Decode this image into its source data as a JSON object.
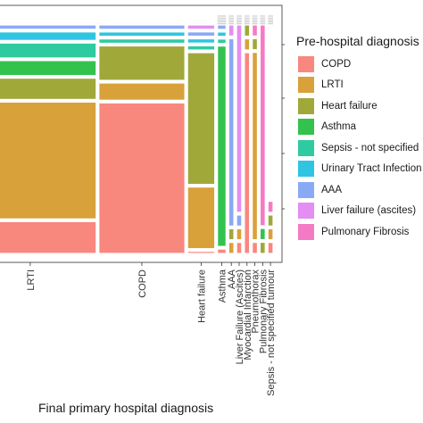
{
  "chart_data": {
    "type": "mosaic",
    "xlabel": "Final primary hospital diagnosis",
    "legend_title": "Pre-hospital diagnosis",
    "legend_position": "right",
    "grid": false,
    "series": [
      {
        "name": "COPD",
        "color": "#f8877e"
      },
      {
        "name": "LRTI",
        "color": "#d9a13a"
      },
      {
        "name": "Heart failure",
        "color": "#a0a83a"
      },
      {
        "name": "Asthma",
        "color": "#33c24e"
      },
      {
        "name": "Sepsis - not specified",
        "color": "#2ecba0"
      },
      {
        "name": "Urinary Tract Infection",
        "color": "#2fc5e2"
      },
      {
        "name": "AAA",
        "color": "#8aa9f5"
      },
      {
        "name": "Liver failure (ascites)",
        "color": "#e48df2"
      },
      {
        "name": "Pulmonary Fibrosis",
        "color": "#f57ac6"
      }
    ],
    "categories": [
      "LRTI",
      "COPD",
      "Heart failure",
      "Asthma",
      "AAA",
      "Liver Failure (Ascites)",
      "Myocardial Infarction",
      "Pneumothorax",
      "Pulmonary Fibrosis",
      "Sepsis - not specified tumour"
    ],
    "column_widths": [
      0.46,
      0.3,
      0.095,
      0.03,
      0.018,
      0.018,
      0.018,
      0.018,
      0.018,
      0.018
    ],
    "columns": [
      {
        "category": "LRTI",
        "segments": [
          [
            "COPD",
            0.15
          ],
          [
            "LRTI",
            0.55
          ],
          [
            "Heart failure",
            0.1
          ],
          [
            "Asthma",
            0.07
          ],
          [
            "Sepsis - not specified",
            0.07
          ],
          [
            "Urinary Tract Infection",
            0.04
          ],
          [
            "AAA",
            0.02
          ]
        ]
      },
      {
        "category": "COPD",
        "segments": [
          [
            "COPD",
            0.7
          ],
          [
            "LRTI",
            0.08
          ],
          [
            "Heart failure",
            0.16
          ],
          [
            "Sepsis - not specified",
            0.02
          ],
          [
            "Urinary Tract Infection",
            0.02
          ],
          [
            "AAA",
            0.02
          ]
        ]
      },
      {
        "category": "Heart failure",
        "segments": [
          [
            "COPD",
            0.01
          ],
          [
            "LRTI",
            0.29
          ],
          [
            "Heart failure",
            0.62
          ],
          [
            "Sepsis - not specified",
            0.02
          ],
          [
            "Urinary Tract Infection",
            0.02
          ],
          [
            "AAA",
            0.02
          ],
          [
            "Liver failure (ascites)",
            0.02
          ]
        ]
      },
      {
        "category": "Asthma",
        "segments": [
          [
            "COPD",
            0.02
          ],
          [
            "Asthma",
            0.92
          ],
          [
            "Sepsis - not specified",
            0.02
          ],
          [
            "Urinary Tract Infection",
            0.02
          ],
          [
            "AAA",
            0.02
          ]
        ]
      },
      {
        "category": "AAA",
        "segments": [
          [
            "LRTI",
            0.05
          ],
          [
            "Heart failure",
            0.05
          ],
          [
            "AAA",
            0.85
          ],
          [
            "Liver failure (ascites)",
            0.05
          ]
        ]
      },
      {
        "category": "Liver Failure (Ascites)",
        "segments": [
          [
            "COPD",
            0.05
          ],
          [
            "LRTI",
            0.05
          ],
          [
            "AAA",
            0.05
          ],
          [
            "Liver failure (ascites)",
            0.85
          ]
        ]
      },
      {
        "category": "Myocardial Infarction",
        "segments": [
          [
            "COPD",
            0.9
          ],
          [
            "LRTI",
            0.05
          ],
          [
            "Heart failure",
            0.05
          ]
        ]
      },
      {
        "category": "Pneumothorax",
        "segments": [
          [
            "COPD",
            0.05
          ],
          [
            "LRTI",
            0.85
          ],
          [
            "Heart failure",
            0.05
          ],
          [
            "Pulmonary Fibrosis",
            0.05
          ]
        ]
      },
      {
        "category": "Pulmonary Fibrosis",
        "segments": [
          [
            "Heart failure",
            0.05
          ],
          [
            "Asthma",
            0.05
          ],
          [
            "Pulmonary Fibrosis",
            0.9
          ]
        ]
      },
      {
        "category": "Sepsis - not specified tumour",
        "segments": [
          [
            "COPD",
            0.05
          ],
          [
            "LRTI",
            0.05
          ],
          [
            "Heart failure",
            0.05
          ],
          [
            "Pulmonary Fibrosis",
            0.05
          ]
        ]
      }
    ]
  }
}
